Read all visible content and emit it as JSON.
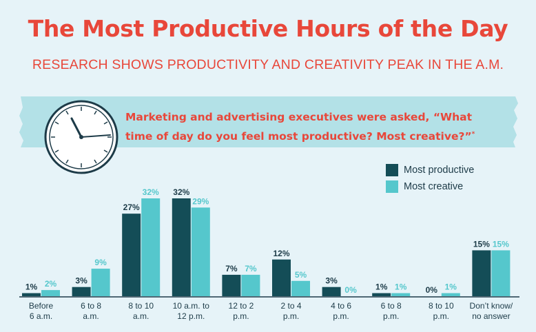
{
  "header": {
    "title": "The Most Productive Hours of the Day",
    "subtitle": "RESEARCH SHOWS PRODUCTIVITY AND CREATIVITY PEAK IN THE A.M."
  },
  "banner": {
    "question_line1": "Marketing and advertising executives were asked, “What",
    "question_line2": "time of day do you feel most productive? Most creative?”",
    "footnote_mark": "*"
  },
  "colors": {
    "accent": "#e8473a",
    "productive": "#144d57",
    "creative": "#55c7cc",
    "banner": "#a9dde4",
    "axis": "#1d3b48"
  },
  "chart_data": {
    "type": "bar",
    "title": "",
    "xlabel": "",
    "ylabel": "",
    "ylim": [
      0,
      32
    ],
    "legend_position": "top-right",
    "categories": [
      [
        "Before",
        "6 a.m."
      ],
      [
        "6 to 8",
        "a.m."
      ],
      [
        "8 to 10",
        "a.m."
      ],
      [
        "10 a.m. to",
        "12 p.m."
      ],
      [
        "12 to 2",
        "p.m."
      ],
      [
        "2 to 4",
        "p.m."
      ],
      [
        "4 to 6",
        "p.m."
      ],
      [
        "6 to 8",
        "p.m."
      ],
      [
        "8 to 10",
        "p.m."
      ],
      [
        "Don’t know/",
        "no answer"
      ]
    ],
    "series": [
      {
        "name": "Most productive",
        "values": [
          1,
          3,
          27,
          32,
          7,
          12,
          3,
          1,
          0,
          15
        ]
      },
      {
        "name": "Most creative",
        "values": [
          2,
          9,
          32,
          29,
          7,
          5,
          0,
          1,
          1,
          15
        ]
      }
    ]
  }
}
